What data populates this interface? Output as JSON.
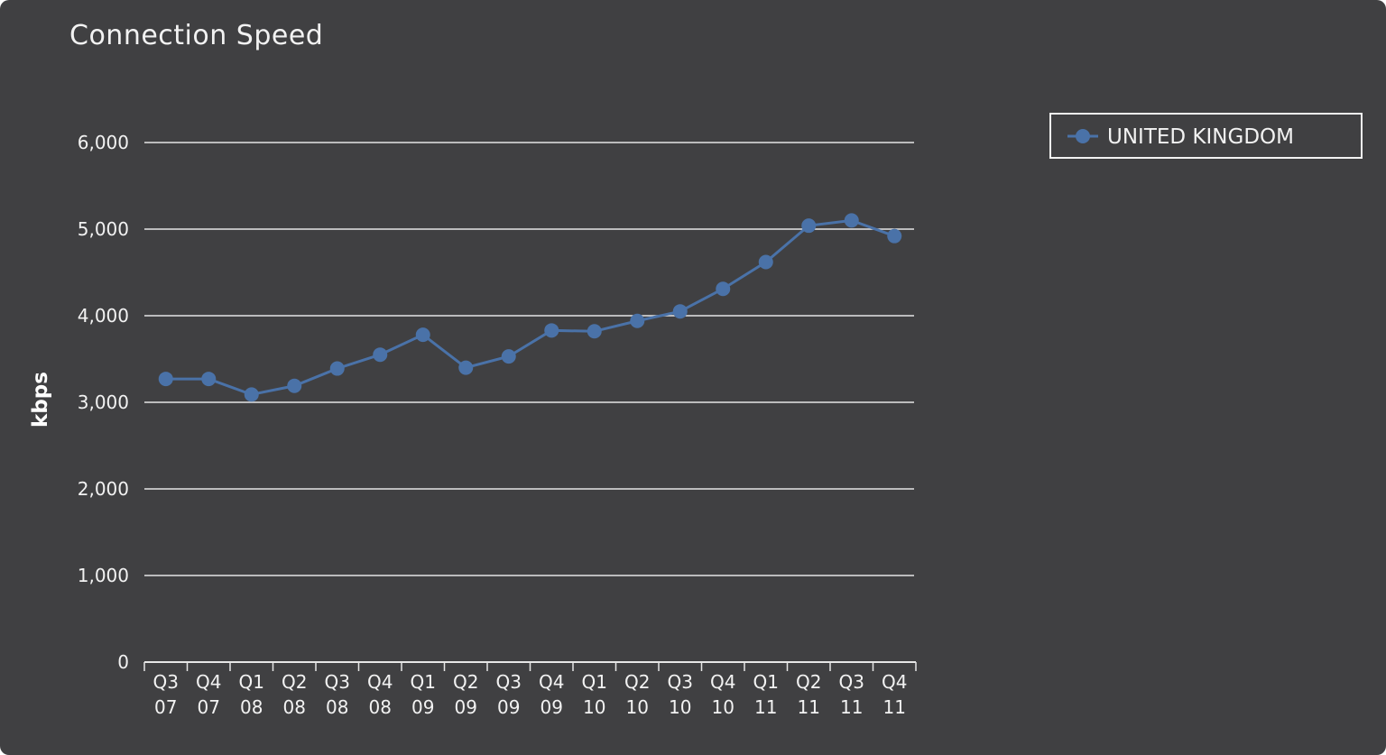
{
  "chart_data": {
    "type": "line",
    "title": "Connection Speed",
    "ylabel": "kbps",
    "xlabel": "",
    "ylim": [
      0,
      6000
    ],
    "yticks": [
      0,
      1000,
      2000,
      3000,
      4000,
      5000,
      6000
    ],
    "ytick_labels": [
      "0",
      "1,000",
      "2,000",
      "3,000",
      "4,000",
      "5,000",
      "6,000"
    ],
    "categories": [
      [
        "Q3",
        "07"
      ],
      [
        "Q4",
        "07"
      ],
      [
        "Q1",
        "08"
      ],
      [
        "Q2",
        "08"
      ],
      [
        "Q3",
        "08"
      ],
      [
        "Q4",
        "08"
      ],
      [
        "Q1",
        "09"
      ],
      [
        "Q2",
        "09"
      ],
      [
        "Q3",
        "09"
      ],
      [
        "Q4",
        "09"
      ],
      [
        "Q1",
        "10"
      ],
      [
        "Q2",
        "10"
      ],
      [
        "Q3",
        "10"
      ],
      [
        "Q4",
        "10"
      ],
      [
        "Q1",
        "11"
      ],
      [
        "Q2",
        "11"
      ],
      [
        "Q3",
        "11"
      ],
      [
        "Q4",
        "11"
      ]
    ],
    "grid": true,
    "legend_position": "top-right",
    "series": [
      {
        "name": "UNITED KINGDOM",
        "color": "#4a72a8",
        "values": [
          3270,
          3270,
          3090,
          3190,
          3390,
          3550,
          3780,
          3400,
          3530,
          3830,
          3820,
          3940,
          4050,
          4310,
          4620,
          5040,
          5100,
          4920
        ]
      }
    ]
  }
}
